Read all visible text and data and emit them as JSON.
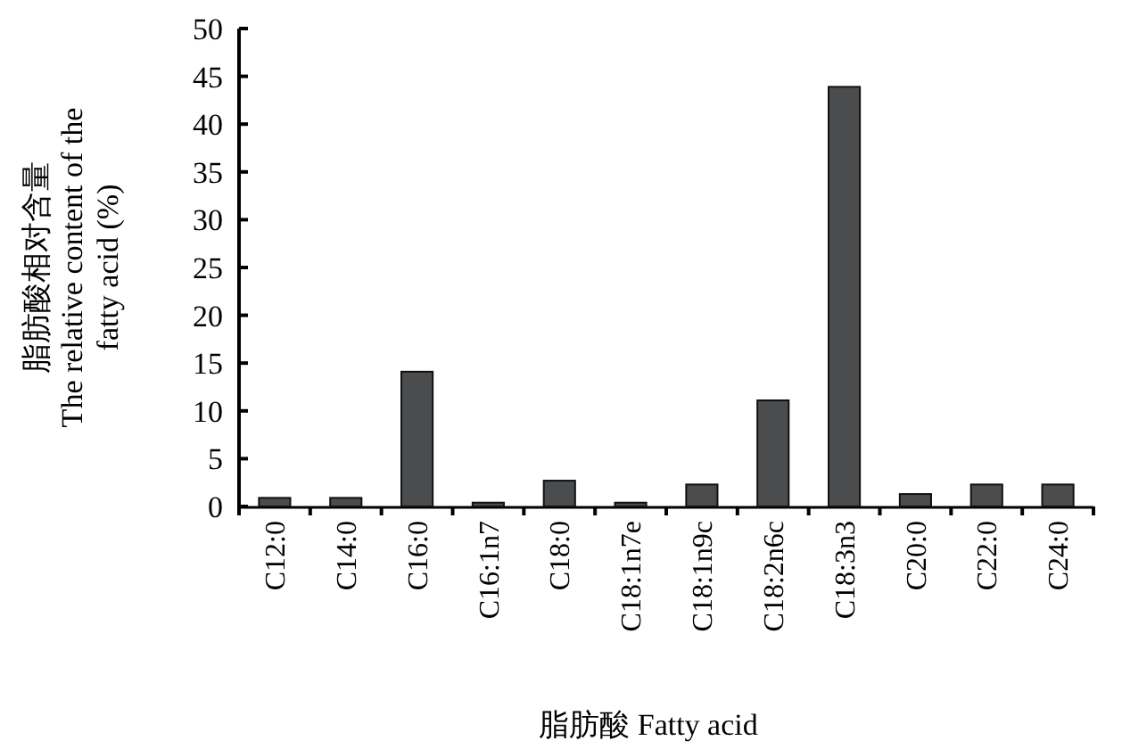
{
  "chart_data": {
    "type": "bar",
    "xlabel": "脂肪酸 Fatty acid",
    "ylabel": "脂肪酸相对含量\nThe relative content of the\nfatty acid (%)",
    "categories": [
      "C12:0",
      "C14:0",
      "C16:0",
      "C16:1n7",
      "C18:0",
      "C18:1n7e",
      "C18:1n9c",
      "C18:2n6c",
      "C18:3n3",
      "C20:0",
      "C22:0",
      "C24:0"
    ],
    "values": [
      0.9,
      0.9,
      14.1,
      0.4,
      2.7,
      0.4,
      2.3,
      11.1,
      43.9,
      1.3,
      2.3,
      2.3
    ],
    "color": "#4a4c4e",
    "ylim": [
      0,
      50
    ],
    "yticks": [
      0,
      5,
      10,
      15,
      20,
      25,
      30,
      35,
      40,
      45,
      50
    ],
    "grid": false
  }
}
